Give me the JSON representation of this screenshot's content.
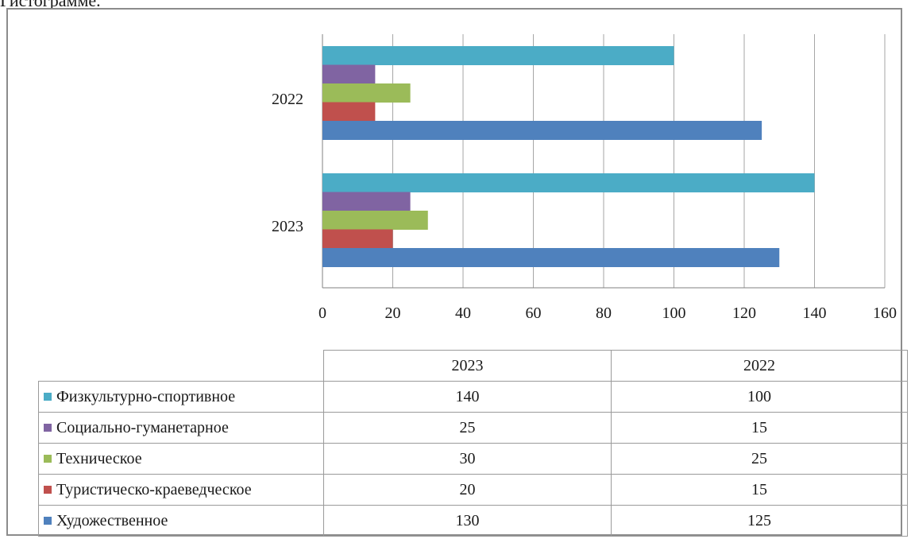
{
  "caption": "Гистограмме.",
  "colors": {
    "Физкультурно-спортивное": "#4bacc6",
    "Социально-гуманетарное": "#8064a2",
    "Техническое": "#9bbb59",
    "Туристическо-краеведческое": "#c0504d",
    "Художественное": "#4f81bd"
  },
  "chart_data": {
    "type": "bar",
    "orientation": "horizontal",
    "categories": [
      "2022",
      "2023"
    ],
    "table_columns": [
      "2023",
      "2022"
    ],
    "series": [
      {
        "name": "Физкультурно-спортивное",
        "values": {
          "2022": 100,
          "2023": 140
        }
      },
      {
        "name": "Социально-гуманетарное",
        "values": {
          "2022": 15,
          "2023": 25
        }
      },
      {
        "name": "Техническое",
        "values": {
          "2022": 25,
          "2023": 30
        }
      },
      {
        "name": "Туристическо-краеведческое",
        "values": {
          "2022": 15,
          "2023": 20
        }
      },
      {
        "name": "Художественное",
        "values": {
          "2022": 125,
          "2023": 130
        }
      }
    ],
    "xlim": [
      0,
      160
    ],
    "xticks": [
      "0",
      "20",
      "40",
      "60",
      "80",
      "100",
      "120",
      "140",
      "160"
    ],
    "grid": "vertical",
    "legend": "data-table-below"
  }
}
